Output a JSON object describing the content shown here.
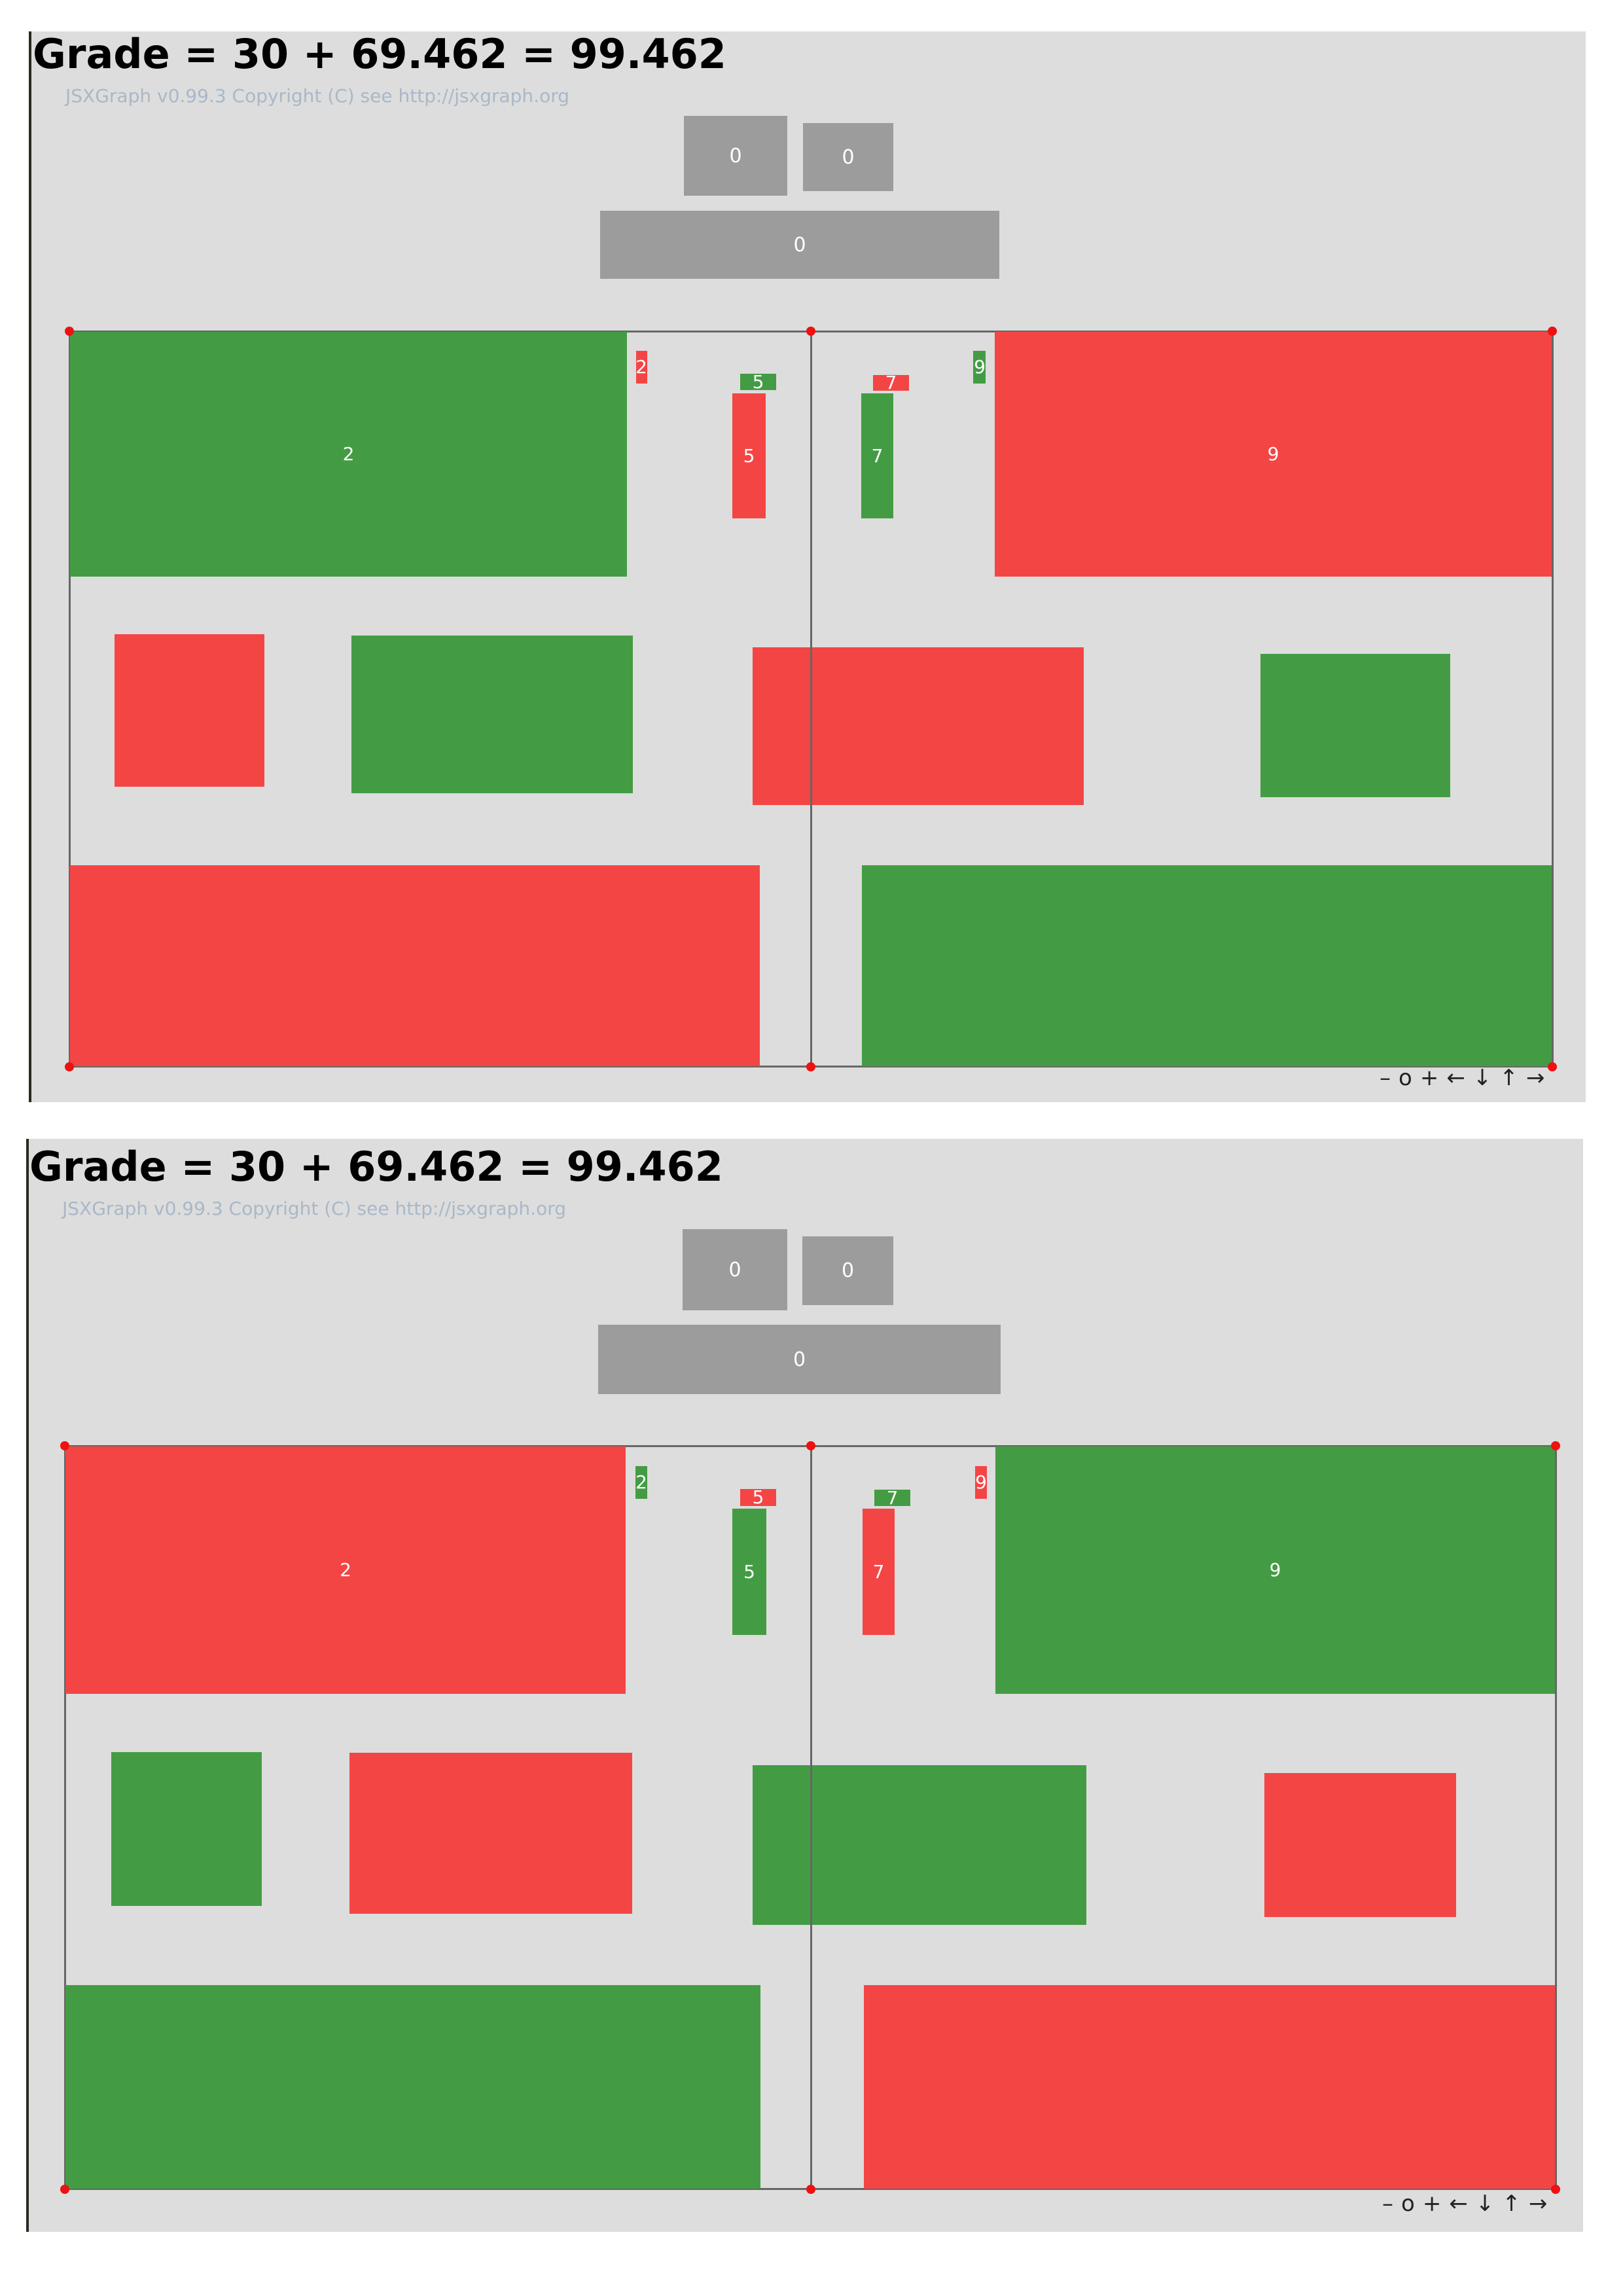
{
  "colors": {
    "green": "#439c43",
    "red": "#f44545",
    "grey": "#9c9c9c",
    "panel": "#dddddd",
    "point": "#ee1111"
  },
  "panels": [
    {
      "grade": "Grade = 30 + 69.462 = 99.462",
      "copyright": "JSXGraph v0.99.3 Copyright (C) see http://jsxgraph.org",
      "counters": [
        "0",
        "0",
        "0"
      ],
      "rect_colors": {
        "big_left": "green",
        "big_right": "red",
        "small_2": "red",
        "small_5_top": "green",
        "bar_5": "red",
        "small_7_top": "red",
        "bar_7": "green",
        "small_9": "green",
        "mid_a": "red",
        "mid_b": "green",
        "mid_c": "red",
        "mid_d": "green",
        "bottom_left": "red",
        "bottom_right": "green"
      },
      "labels": {
        "big_left": "2",
        "big_right": "9",
        "small_2": "2",
        "small_5_top": "5",
        "bar_5": "5",
        "small_7_top": "7",
        "bar_7": "7",
        "small_9": "9"
      },
      "nav": [
        "–",
        "o",
        "+",
        "←",
        "↓",
        "↑",
        "→"
      ]
    },
    {
      "grade": "Grade = 30 + 69.462 = 99.462",
      "copyright": "JSXGraph v0.99.3 Copyright (C) see http://jsxgraph.org",
      "counters": [
        "0",
        "0",
        "0"
      ],
      "rect_colors": {
        "big_left": "red",
        "big_right": "green",
        "small_2": "green",
        "small_5_top": "red",
        "bar_5": "green",
        "small_7_top": "green",
        "bar_7": "red",
        "small_9": "red",
        "mid_a": "green",
        "mid_b": "red",
        "mid_c": "green",
        "mid_d": "red",
        "bottom_left": "green",
        "bottom_right": "red"
      },
      "labels": {
        "big_left": "2",
        "big_right": "9",
        "small_2": "2",
        "small_5_top": "5",
        "bar_5": "5",
        "small_7_top": "7",
        "bar_7": "7",
        "small_9": "9"
      },
      "nav": [
        "–",
        "o",
        "+",
        "←",
        "↓",
        "↑",
        "→"
      ]
    }
  ]
}
